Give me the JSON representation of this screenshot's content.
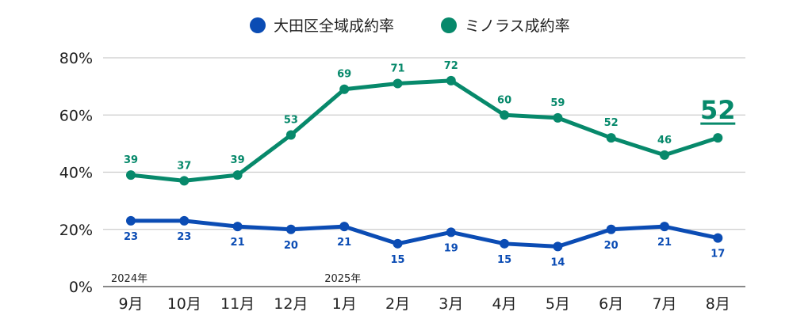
{
  "chart_data": {
    "type": "line",
    "title": "",
    "categories": [
      "9月",
      "10月",
      "11月",
      "12月",
      "1月",
      "2月",
      "3月",
      "4月",
      "5月",
      "6月",
      "7月",
      "8月"
    ],
    "year_labels": [
      {
        "index": 0,
        "text": "2024年"
      },
      {
        "index": 4,
        "text": "2025年"
      }
    ],
    "series": [
      {
        "name": "大田区全域成約率",
        "color": "#0b4cb4",
        "values": [
          23,
          23,
          21,
          20,
          21,
          15,
          19,
          15,
          14,
          20,
          21,
          17
        ],
        "label_position": "below"
      },
      {
        "name": "ミノラス成約率",
        "color": "#07896b",
        "values": [
          39,
          37,
          39,
          53,
          69,
          71,
          72,
          60,
          59,
          52,
          46,
          52
        ],
        "label_position": "above",
        "highlight_last": true
      }
    ],
    "yticks": [
      "0%",
      "20%",
      "40%",
      "60%",
      "80%"
    ],
    "ytick_values": [
      0,
      20,
      40,
      60,
      80
    ],
    "ylim": [
      0,
      80
    ],
    "xlabel": "",
    "ylabel": "",
    "grid": true,
    "legend_placement": "top-center"
  }
}
